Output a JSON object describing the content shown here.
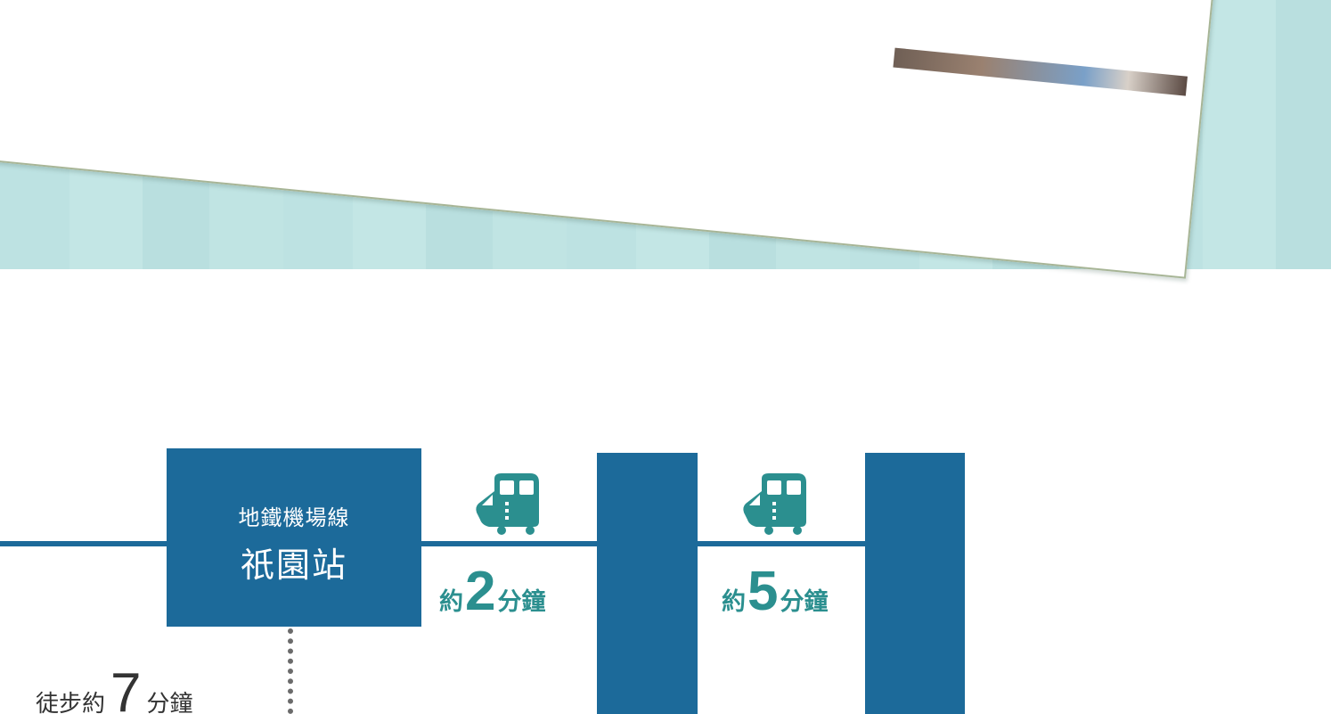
{
  "banner": {
    "background_color": "#bde2e2",
    "card_border_color": "#a7b596"
  },
  "route": {
    "line_color": "#1c6a9a",
    "accent_text_color": "#2b8f8f",
    "left_segment": {
      "time_suffix": "分鐘"
    },
    "station_gion": {
      "line_name": "地鐵機場線",
      "station_name": "祇園站"
    },
    "segment_1": {
      "icon": "train-icon",
      "prefix": "約",
      "minutes": "2",
      "suffix": "分鐘"
    },
    "segment_2": {
      "icon": "train-icon",
      "prefix": "約",
      "minutes": "5",
      "suffix": "分鐘"
    },
    "walk": {
      "prefix": "徒步約",
      "minutes": "7",
      "suffix": "分鐘"
    }
  }
}
